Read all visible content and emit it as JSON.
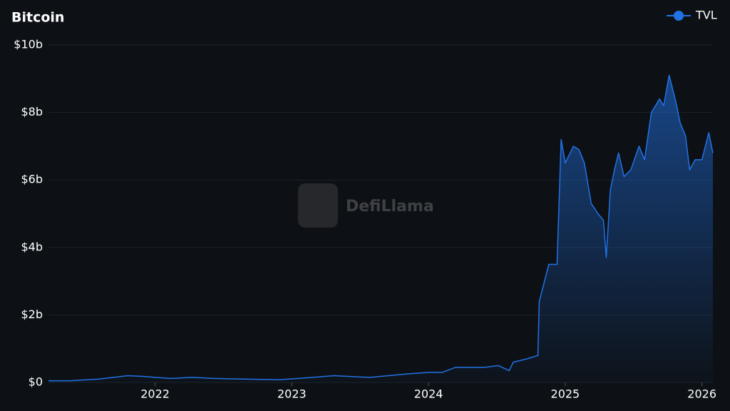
{
  "chart_data": {
    "type": "area",
    "title": "Bitcoin",
    "watermark": "DefiLlama",
    "x": [
      2021.22,
      2021.38,
      2021.59,
      2021.8,
      2021.91,
      2022.11,
      2022.27,
      2022.43,
      2022.64,
      2022.9,
      2023.05,
      2023.31,
      2023.57,
      2023.84,
      2024.01,
      2024.1,
      2024.2,
      2024.41,
      2024.51,
      2024.59,
      2024.62,
      2024.72,
      2024.8,
      2024.81,
      2024.88,
      2024.94,
      2024.97,
      2025.0,
      2025.06,
      2025.1,
      2025.14,
      2025.19,
      2025.24,
      2025.28,
      2025.3,
      2025.33,
      2025.36,
      2025.39,
      2025.43,
      2025.48,
      2025.54,
      2025.58,
      2025.63,
      2025.69,
      2025.72,
      2025.76,
      2025.81,
      2025.84,
      2025.88,
      2025.91,
      2025.95,
      2026.0,
      2026.05,
      2026.08
    ],
    "series": [
      {
        "name": "TVL",
        "color": "#2172e5",
        "values": [
          0.05,
          0.05,
          0.1,
          0.2,
          0.18,
          0.12,
          0.15,
          0.12,
          0.1,
          0.08,
          0.12,
          0.2,
          0.15,
          0.25,
          0.3,
          0.3,
          0.45,
          0.45,
          0.5,
          0.35,
          0.6,
          0.7,
          0.8,
          2.4,
          3.5,
          3.5,
          7.2,
          6.5,
          7.0,
          6.9,
          6.5,
          5.3,
          5.0,
          4.8,
          3.7,
          5.7,
          6.3,
          6.8,
          6.1,
          6.3,
          7.0,
          6.6,
          8.0,
          8.4,
          8.2,
          9.1,
          8.3,
          7.7,
          7.3,
          6.3,
          6.6,
          6.6,
          7.4,
          6.8
        ]
      }
    ],
    "xlim": [
      2021.22,
      2026.08
    ],
    "xticks": [
      2022,
      2023,
      2024,
      2025,
      2026
    ],
    "ylim": [
      0,
      10
    ],
    "yticks": [
      {
        "value": 0,
        "label": "$0"
      },
      {
        "value": 2,
        "label": "$2b"
      },
      {
        "value": 4,
        "label": "$4b"
      },
      {
        "value": 6,
        "label": "$6b"
      },
      {
        "value": 8,
        "label": "$8b"
      },
      {
        "value": 10,
        "label": "$10b"
      }
    ],
    "grid": true,
    "legend": "top-right"
  }
}
